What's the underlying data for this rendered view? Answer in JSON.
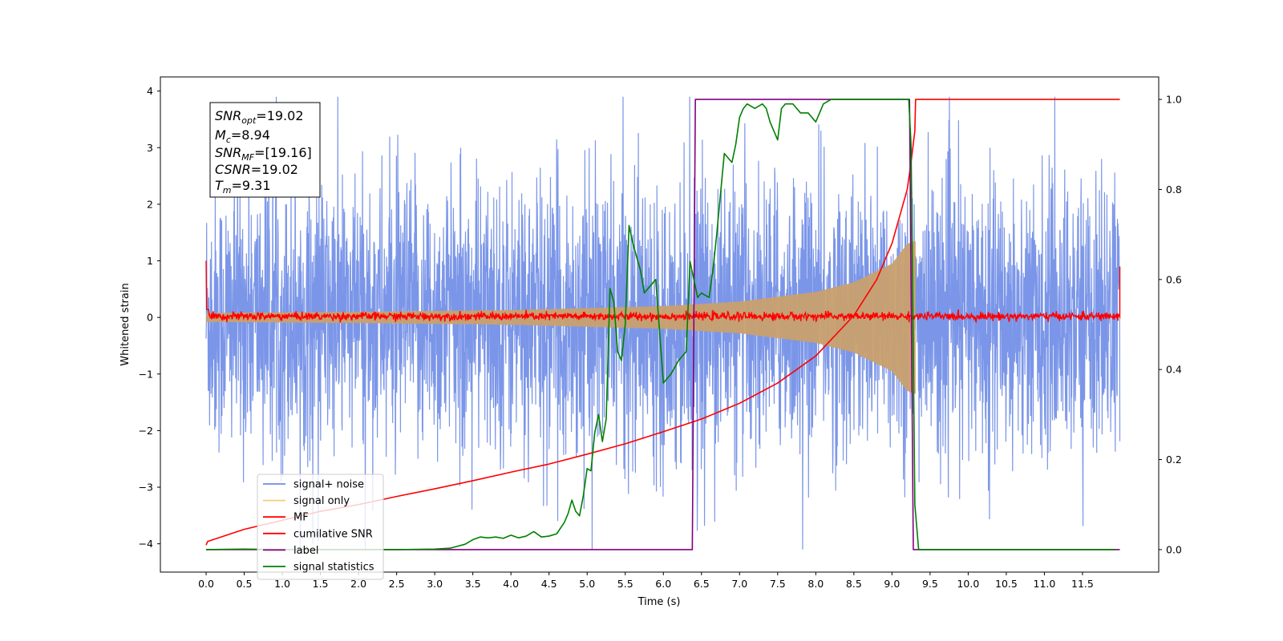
{
  "chart_data": {
    "type": "line",
    "xlabel": "Time (s)",
    "ylabel": "Whitened strain",
    "xlim": [
      -0.6,
      12.5
    ],
    "ylim_left": [
      -4.5,
      4.25
    ],
    "ylim_right": [
      -0.05,
      1.05
    ],
    "x_ticks": [
      "0.0",
      "0.5",
      "1.0",
      "1.5",
      "2.0",
      "2.5",
      "3.0",
      "3.5",
      "4.0",
      "4.5",
      "5.0",
      "5.5",
      "6.0",
      "6.5",
      "7.0",
      "7.5",
      "8.0",
      "8.5",
      "9.0",
      "9.5",
      "10.0",
      "10.5",
      "11.0",
      "11.5"
    ],
    "y_ticks_left": [
      "−4",
      "−3",
      "−2",
      "−1",
      "0",
      "1",
      "2",
      "3",
      "4"
    ],
    "y_ticks_right": [
      "0.0",
      "0.2",
      "0.4",
      "0.6",
      "0.8",
      "1.0"
    ],
    "annotation": {
      "snr_opt": {
        "sym": "SNR",
        "sub": "opt",
        "value": "=19.02"
      },
      "mc": {
        "sym": "M",
        "sub": "c",
        "value": "=8.94"
      },
      "snr_mf": {
        "sym": "SNR",
        "sub": "MF",
        "value": "=[19.16]"
      },
      "csnr": {
        "sym": "CSNR",
        "sub": "",
        "value": "=19.02"
      },
      "tm": {
        "sym": "T",
        "sub": "m",
        "value": "=9.31"
      }
    },
    "legend": {
      "placement": "lower-left",
      "entries": [
        {
          "label": "signal+ noise",
          "color": "#6d8be6"
        },
        {
          "label": "signal only",
          "color": "#f7c97a"
        },
        {
          "label": "MF",
          "color": "#ff0000"
        },
        {
          "label": "cumilative SNR",
          "color": "#ff0000"
        },
        {
          "label": "label",
          "color": "#800080"
        },
        {
          "label": "signal statistics",
          "color": "#008000"
        }
      ]
    },
    "series": [
      {
        "name": "signal+ noise",
        "axis": "left",
        "color": "#6d8be6",
        "sampled": true,
        "x_range": [
          0.0,
          11.99
        ],
        "amplitude_range": [
          -4.1,
          3.9
        ],
        "typical_std": 1.2
      },
      {
        "name": "signal only",
        "axis": "left",
        "color": "#f7c97a",
        "envelope": {
          "x": [
            0.0,
            2.0,
            4.0,
            6.0,
            7.0,
            8.0,
            8.5,
            9.0,
            9.2,
            9.3
          ],
          "amp": [
            0.08,
            0.1,
            0.13,
            0.2,
            0.28,
            0.45,
            0.62,
            0.95,
            1.3,
            1.35
          ]
        },
        "end": 9.31
      },
      {
        "name": "MF",
        "axis": "left",
        "color": "#ff0000",
        "sampled": true,
        "x_range": [
          0.0,
          11.99
        ],
        "amplitude_range": [
          -0.12,
          0.14
        ],
        "edge_values": [
          1.0,
          0.9
        ]
      },
      {
        "name": "cumilative SNR",
        "axis": "right",
        "color": "#ff0000",
        "x": [
          0.0,
          0.02,
          0.5,
          1.0,
          1.5,
          2.0,
          2.5,
          3.0,
          3.5,
          4.0,
          4.5,
          5.0,
          5.5,
          6.0,
          6.5,
          7.0,
          7.5,
          8.0,
          8.5,
          8.8,
          9.0,
          9.1,
          9.2,
          9.25,
          9.3,
          9.31,
          11.99
        ],
        "y": [
          0.01,
          0.018,
          0.045,
          0.065,
          0.085,
          0.1,
          0.118,
          0.135,
          0.153,
          0.172,
          0.19,
          0.212,
          0.235,
          0.262,
          0.29,
          0.325,
          0.37,
          0.43,
          0.52,
          0.6,
          0.68,
          0.74,
          0.8,
          0.86,
          0.93,
          1.0,
          1.0
        ]
      },
      {
        "name": "label",
        "axis": "right",
        "color": "#800080",
        "x": [
          0.0,
          6.38,
          6.42,
          9.23,
          9.28,
          11.99
        ],
        "y": [
          0.0,
          0.0,
          1.0,
          1.0,
          0.0,
          0.0
        ]
      },
      {
        "name": "signal statistics",
        "axis": "right",
        "color": "#008000",
        "x": [
          0.0,
          0.5,
          1.0,
          1.5,
          2.0,
          2.5,
          3.0,
          3.2,
          3.4,
          3.5,
          3.6,
          3.7,
          3.8,
          3.9,
          4.0,
          4.1,
          4.2,
          4.3,
          4.4,
          4.5,
          4.6,
          4.7,
          4.75,
          4.8,
          4.85,
          4.9,
          4.95,
          5.0,
          5.05,
          5.1,
          5.15,
          5.2,
          5.25,
          5.3,
          5.35,
          5.4,
          5.45,
          5.5,
          5.55,
          5.6,
          5.65,
          5.7,
          5.75,
          5.8,
          5.9,
          6.0,
          6.05,
          6.1,
          6.2,
          6.3,
          6.35,
          6.4,
          6.45,
          6.5,
          6.6,
          6.65,
          6.7,
          6.8,
          6.85,
          6.9,
          6.95,
          7.0,
          7.05,
          7.1,
          7.2,
          7.3,
          7.35,
          7.4,
          7.5,
          7.55,
          7.6,
          7.7,
          7.8,
          7.9,
          8.0,
          8.1,
          8.2,
          8.3,
          8.4,
          8.5,
          8.6,
          8.7,
          8.8,
          8.9,
          9.0,
          9.1,
          9.15,
          9.2,
          9.22,
          9.25,
          9.27,
          9.3,
          9.35,
          9.4,
          9.5,
          10.0,
          11.0,
          11.93
        ],
        "y": [
          0.0,
          0.001,
          0.0,
          0.0,
          0.0,
          0.0,
          0.001,
          0.003,
          0.012,
          0.022,
          0.028,
          0.026,
          0.028,
          0.025,
          0.032,
          0.026,
          0.03,
          0.04,
          0.028,
          0.03,
          0.035,
          0.06,
          0.08,
          0.11,
          0.085,
          0.075,
          0.12,
          0.18,
          0.175,
          0.26,
          0.3,
          0.24,
          0.29,
          0.58,
          0.55,
          0.44,
          0.42,
          0.5,
          0.72,
          0.68,
          0.65,
          0.62,
          0.57,
          0.58,
          0.6,
          0.37,
          0.38,
          0.39,
          0.42,
          0.44,
          0.64,
          0.6,
          0.56,
          0.57,
          0.56,
          0.62,
          0.7,
          0.88,
          0.87,
          0.86,
          0.9,
          0.96,
          0.98,
          0.99,
          0.98,
          0.99,
          0.98,
          0.95,
          0.91,
          0.98,
          0.99,
          0.99,
          0.97,
          0.97,
          0.95,
          0.99,
          1.0,
          1.0,
          1.0,
          1.0,
          1.0,
          1.0,
          1.0,
          1.0,
          1.0,
          1.0,
          1.0,
          1.0,
          1.0,
          0.9,
          0.6,
          0.1,
          0.0,
          0.0,
          0.0,
          0.0,
          0.0,
          0.0
        ]
      }
    ]
  }
}
